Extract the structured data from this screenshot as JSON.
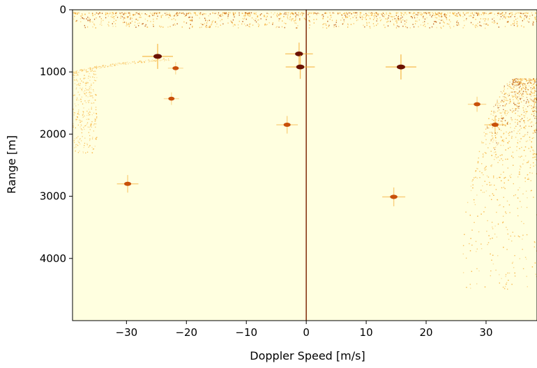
{
  "chart_data": {
    "type": "heatmap",
    "title": "",
    "xlabel": "Doppler Speed [m/s]",
    "ylabel": "Range [m]",
    "xlim": [
      -39,
      38.5
    ],
    "ylim": [
      5000,
      0
    ],
    "x_ticks": [
      -30,
      -20,
      -10,
      0,
      10,
      20,
      30
    ],
    "x_tick_labels": [
      "−30",
      "−20",
      "−10",
      "0",
      "10",
      "20",
      "30"
    ],
    "y_ticks": [
      0,
      1000,
      2000,
      3000,
      4000
    ],
    "y_tick_labels": [
      "0",
      "1000",
      "2000",
      "3000",
      "4000"
    ],
    "colormap": "YlOrBr-like",
    "background_color": "#ffffe0",
    "colors": {
      "low": "#ffffe0",
      "mid": "#f5a623",
      "high": "#6b1200"
    },
    "strong_targets": [
      {
        "x": -24.8,
        "y": 750,
        "intensity": 1.0
      },
      {
        "x": -1.2,
        "y": 710,
        "intensity": 0.9
      },
      {
        "x": -1.0,
        "y": 920,
        "intensity": 0.95
      },
      {
        "x": 15.8,
        "y": 920,
        "intensity": 1.0
      },
      {
        "x": -3.2,
        "y": 1850,
        "intensity": 0.7
      },
      {
        "x": -29.8,
        "y": 2800,
        "intensity": 0.7
      },
      {
        "x": 14.6,
        "y": 3010,
        "intensity": 0.75
      },
      {
        "x": -21.8,
        "y": 940,
        "intensity": 0.5
      },
      {
        "x": -22.5,
        "y": 1430,
        "intensity": 0.5
      },
      {
        "x": 28.5,
        "y": 1520,
        "intensity": 0.6
      },
      {
        "x": 31.5,
        "y": 1850,
        "intensity": 0.7
      }
    ],
    "zero_doppler_line": {
      "x": 0,
      "y_range": [
        0,
        5000
      ]
    },
    "near_range_clutter": {
      "y_range": [
        0,
        250
      ]
    },
    "left_clutter_band": {
      "x_range": [
        -39,
        -35
      ],
      "y_range": [
        950,
        2300
      ]
    },
    "right_clutter_region": {
      "x_start": 26,
      "y_range": [
        1100,
        4500
      ]
    }
  }
}
